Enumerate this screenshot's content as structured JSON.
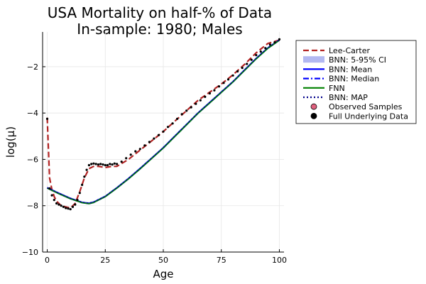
{
  "chart_data": {
    "type": "line",
    "title": "USA Mortality on half-% of Data",
    "subtitle": "In-sample: 1980; Males",
    "xlabel": "Age",
    "ylabel": "log(μ)",
    "xlim": [
      -2,
      102
    ],
    "ylim": [
      -10,
      -0.5
    ],
    "x_ticks": [
      0,
      25,
      50,
      75,
      100
    ],
    "y_ticks": [
      -10,
      -8,
      -6,
      -4,
      -2
    ],
    "x_tick_labels": [
      "0",
      "25",
      "50",
      "75",
      "100"
    ],
    "y_tick_labels": [
      "−10",
      "−8",
      "−6",
      "−4",
      "−2"
    ],
    "grid": true,
    "legend_position": "outside-right",
    "series": [
      {
        "name": "Lee-Carter",
        "style": "dashed",
        "color": "#b22222",
        "x": [
          0,
          1,
          2,
          3,
          4,
          5,
          6,
          8,
          10,
          12,
          14,
          16,
          18,
          20,
          22,
          25,
          28,
          30,
          35,
          40,
          45,
          50,
          55,
          60,
          65,
          70,
          75,
          80,
          85,
          90,
          95,
          100
        ],
        "y": [
          -4.2,
          -6.8,
          -7.3,
          -7.6,
          -7.8,
          -7.9,
          -8.0,
          -8.05,
          -8.1,
          -7.9,
          -7.4,
          -6.8,
          -6.4,
          -6.3,
          -6.3,
          -6.35,
          -6.3,
          -6.3,
          -6.0,
          -5.6,
          -5.2,
          -4.8,
          -4.35,
          -3.9,
          -3.45,
          -3.1,
          -2.75,
          -2.35,
          -1.9,
          -1.4,
          -1.0,
          -0.85
        ]
      },
      {
        "name": "BNN: 5-95% CI",
        "style": "band",
        "color": "#aab0f0",
        "x": [
          0,
          5,
          10,
          15,
          18,
          20,
          25,
          30,
          35,
          40,
          45,
          50,
          55,
          60,
          65,
          70,
          75,
          80,
          85,
          90,
          95,
          100
        ],
        "lower": [
          -7.28,
          -7.52,
          -7.74,
          -7.9,
          -7.95,
          -7.9,
          -7.65,
          -7.28,
          -6.88,
          -6.45,
          -6.0,
          -5.55,
          -5.05,
          -4.55,
          -4.05,
          -3.6,
          -3.15,
          -2.7,
          -2.2,
          -1.7,
          -1.25,
          -0.9
        ],
        "upper": [
          -7.18,
          -7.42,
          -7.64,
          -7.82,
          -7.85,
          -7.8,
          -7.55,
          -7.18,
          -6.78,
          -6.35,
          -5.9,
          -5.45,
          -4.95,
          -4.45,
          -3.95,
          -3.5,
          -3.05,
          -2.6,
          -2.1,
          -1.6,
          -1.15,
          -0.8
        ]
      },
      {
        "name": "BNN: Mean",
        "style": "solid",
        "color": "#0000ff",
        "x": [
          0,
          5,
          10,
          15,
          18,
          20,
          25,
          30,
          35,
          40,
          45,
          50,
          55,
          60,
          65,
          70,
          75,
          80,
          85,
          90,
          95,
          100
        ],
        "y": [
          -7.23,
          -7.47,
          -7.69,
          -7.86,
          -7.9,
          -7.85,
          -7.6,
          -7.23,
          -6.83,
          -6.4,
          -5.95,
          -5.5,
          -5.0,
          -4.5,
          -4.0,
          -3.55,
          -3.1,
          -2.65,
          -2.15,
          -1.65,
          -1.2,
          -0.85
        ]
      },
      {
        "name": "BNN: Median",
        "style": "dashdot",
        "color": "#0000ff",
        "x": [
          0,
          5,
          10,
          15,
          18,
          20,
          25,
          30,
          35,
          40,
          45,
          50,
          55,
          60,
          65,
          70,
          75,
          80,
          85,
          90,
          95,
          100
        ],
        "y": [
          -7.23,
          -7.47,
          -7.69,
          -7.86,
          -7.9,
          -7.85,
          -7.6,
          -7.23,
          -6.83,
          -6.4,
          -5.95,
          -5.5,
          -5.0,
          -4.5,
          -4.0,
          -3.55,
          -3.1,
          -2.65,
          -2.15,
          -1.65,
          -1.2,
          -0.85
        ]
      },
      {
        "name": "FNN",
        "style": "solid",
        "color": "#008000",
        "x": [
          0,
          5,
          10,
          15,
          18,
          20,
          25,
          30,
          35,
          40,
          45,
          50,
          55,
          60,
          65,
          70,
          75,
          80,
          85,
          90,
          95,
          100
        ],
        "y": [
          -7.24,
          -7.48,
          -7.7,
          -7.87,
          -7.91,
          -7.86,
          -7.61,
          -7.24,
          -6.84,
          -6.41,
          -5.96,
          -5.51,
          -5.01,
          -4.51,
          -4.01,
          -3.56,
          -3.11,
          -2.66,
          -2.16,
          -1.66,
          -1.21,
          -0.86
        ]
      },
      {
        "name": "BNN: MAP",
        "style": "dotted",
        "color": "#00008b",
        "x": [
          0,
          5,
          10,
          15,
          18,
          20,
          25,
          30,
          35,
          40,
          45,
          50,
          55,
          60,
          65,
          70,
          75,
          80,
          85,
          90,
          95,
          100
        ],
        "y": [
          -7.22,
          -7.46,
          -7.68,
          -7.85,
          -7.89,
          -7.84,
          -7.59,
          -7.22,
          -6.82,
          -6.39,
          -5.94,
          -5.49,
          -4.99,
          -4.49,
          -3.99,
          -3.54,
          -3.09,
          -2.64,
          -2.14,
          -1.64,
          -1.19,
          -0.84
        ]
      },
      {
        "name": "Observed Samples",
        "style": "markers",
        "color": "#e0607e",
        "x": [],
        "y": []
      },
      {
        "name": "Full Underlying Data",
        "style": "markers",
        "color": "#000000",
        "x": [
          0,
          1,
          2,
          3,
          4,
          5,
          6,
          7,
          8,
          9,
          10,
          11,
          12,
          13,
          14,
          15,
          16,
          17,
          18,
          19,
          20,
          21,
          22,
          23,
          24,
          25,
          26,
          27,
          28,
          29,
          30,
          32,
          34,
          36,
          38,
          40,
          42,
          44,
          46,
          48,
          50,
          52,
          54,
          56,
          58,
          60,
          62,
          64,
          66,
          68,
          70,
          72,
          74,
          76,
          78,
          80,
          82,
          84,
          86,
          88,
          90,
          92,
          94,
          96,
          98,
          100
        ],
        "y": [
          -4.25,
          -7.25,
          -7.55,
          -7.75,
          -7.9,
          -7.95,
          -8.0,
          -8.05,
          -8.1,
          -8.12,
          -8.15,
          -8.05,
          -7.95,
          -7.75,
          -7.45,
          -7.1,
          -6.75,
          -6.45,
          -6.25,
          -6.2,
          -6.18,
          -6.2,
          -6.22,
          -6.2,
          -6.22,
          -6.25,
          -6.25,
          -6.2,
          -6.22,
          -6.18,
          -6.2,
          -6.1,
          -5.95,
          -5.8,
          -5.65,
          -5.55,
          -5.4,
          -5.25,
          -5.1,
          -4.95,
          -4.8,
          -4.6,
          -4.45,
          -4.25,
          -4.05,
          -3.9,
          -3.75,
          -3.6,
          -3.45,
          -3.3,
          -3.15,
          -3.02,
          -2.85,
          -2.7,
          -2.55,
          -2.38,
          -2.2,
          -2.05,
          -1.88,
          -1.7,
          -1.5,
          -1.35,
          -1.2,
          -1.05,
          -0.95,
          -0.82
        ]
      }
    ]
  }
}
